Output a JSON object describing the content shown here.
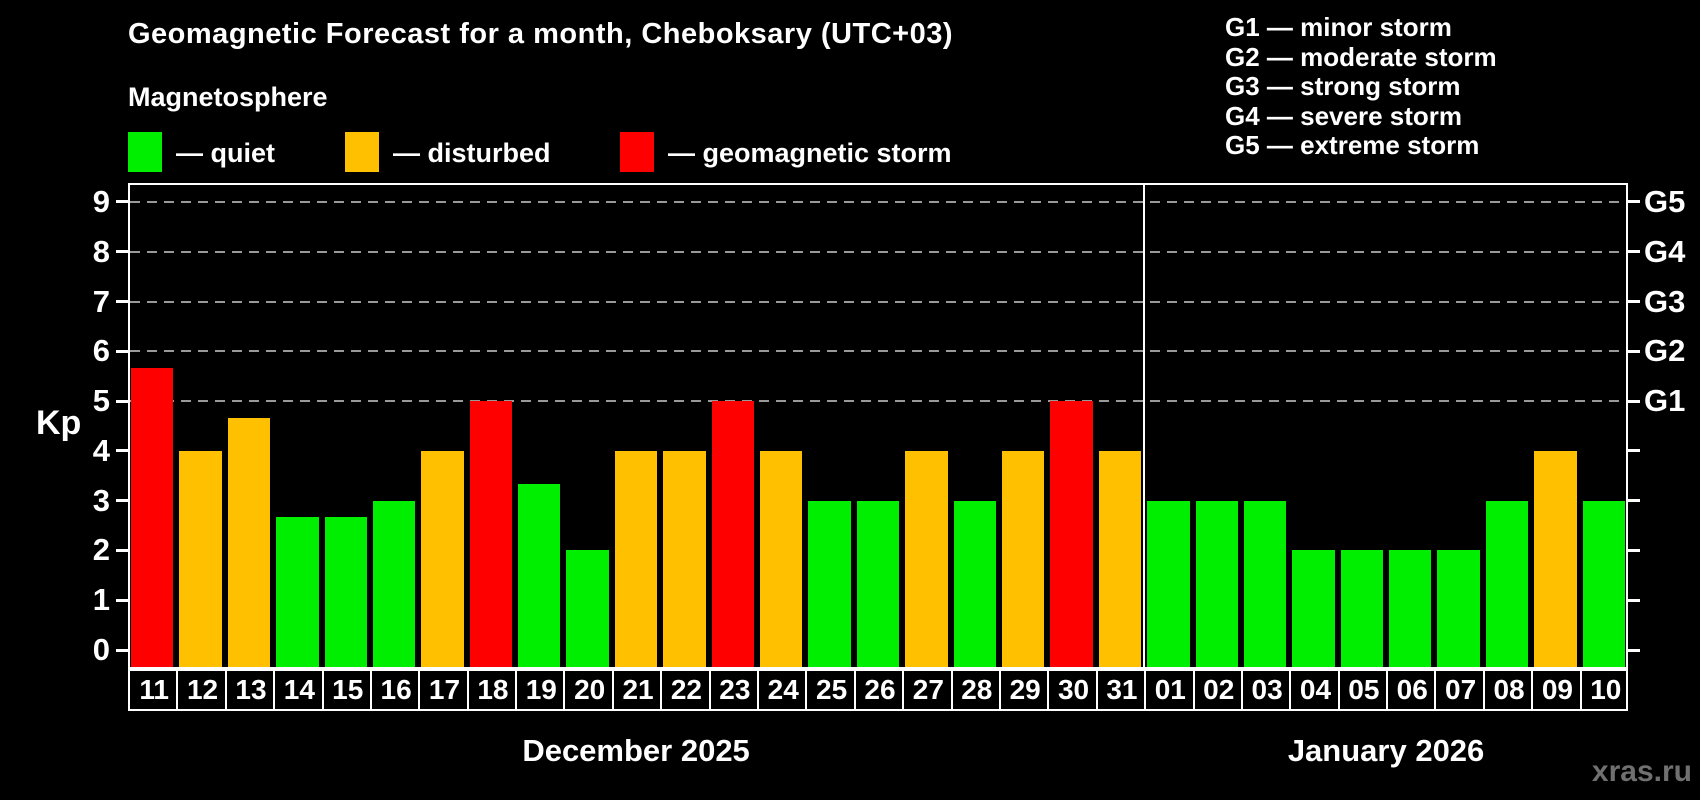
{
  "header": {
    "title": "Geomagnetic Forecast for a month, Cheboksary (UTC+03)",
    "subtitle": "Magnetosphere"
  },
  "legend": {
    "items": [
      {
        "label": "— quiet",
        "level": "quiet",
        "color": "#00ee00"
      },
      {
        "label": "— disturbed",
        "level": "disturbed",
        "color": "#ffc000"
      },
      {
        "label": "— geomagnetic storm",
        "level": "storm",
        "color": "#ff0000"
      }
    ]
  },
  "g_legend": [
    "G1 — minor storm",
    "G2 — moderate storm",
    "G3 — strong storm",
    "G4 — severe storm",
    "G5 — extreme storm"
  ],
  "axes": {
    "kp_label": "Kp",
    "y_ticks": [
      0,
      1,
      2,
      3,
      4,
      5,
      6,
      7,
      8,
      9
    ],
    "g_labels": [
      {
        "label": "G1",
        "value": 5
      },
      {
        "label": "G2",
        "value": 6
      },
      {
        "label": "G3",
        "value": 7
      },
      {
        "label": "G4",
        "value": 8
      },
      {
        "label": "G5",
        "value": 9
      }
    ]
  },
  "colors": {
    "quiet": "#00ee00",
    "disturbed": "#ffc000",
    "storm": "#ff0000",
    "grid": "#999999",
    "axis": "#ffffff",
    "watermark": "#707070"
  },
  "watermark": "xras.ru",
  "chart_data": {
    "type": "bar",
    "title": "Geomagnetic Forecast for a month, Cheboksary (UTC+03)",
    "xlabel": "",
    "ylabel": "Kp",
    "ylim": [
      0,
      9
    ],
    "gridlines_at": [
      5,
      6,
      7,
      8,
      9
    ],
    "legend_position": "top-left",
    "groups": [
      {
        "label": "December 2025",
        "bars": [
          {
            "day": "11",
            "kp": 5.67,
            "level": "storm"
          },
          {
            "day": "12",
            "kp": 4.0,
            "level": "disturbed"
          },
          {
            "day": "13",
            "kp": 4.67,
            "level": "disturbed"
          },
          {
            "day": "14",
            "kp": 2.67,
            "level": "quiet"
          },
          {
            "day": "15",
            "kp": 2.67,
            "level": "quiet"
          },
          {
            "day": "16",
            "kp": 3.0,
            "level": "quiet"
          },
          {
            "day": "17",
            "kp": 4.0,
            "level": "disturbed"
          },
          {
            "day": "18",
            "kp": 5.0,
            "level": "storm"
          },
          {
            "day": "19",
            "kp": 3.33,
            "level": "quiet"
          },
          {
            "day": "20",
            "kp": 2.0,
            "level": "quiet"
          },
          {
            "day": "21",
            "kp": 4.0,
            "level": "disturbed"
          },
          {
            "day": "22",
            "kp": 4.0,
            "level": "disturbed"
          },
          {
            "day": "23",
            "kp": 5.0,
            "level": "storm"
          },
          {
            "day": "24",
            "kp": 4.0,
            "level": "disturbed"
          },
          {
            "day": "25",
            "kp": 3.0,
            "level": "quiet"
          },
          {
            "day": "26",
            "kp": 3.0,
            "level": "quiet"
          },
          {
            "day": "27",
            "kp": 4.0,
            "level": "disturbed"
          },
          {
            "day": "28",
            "kp": 3.0,
            "level": "quiet"
          },
          {
            "day": "29",
            "kp": 4.0,
            "level": "disturbed"
          },
          {
            "day": "30",
            "kp": 5.0,
            "level": "storm"
          },
          {
            "day": "31",
            "kp": 4.0,
            "level": "disturbed"
          }
        ]
      },
      {
        "label": "January 2026",
        "bars": [
          {
            "day": "01",
            "kp": 3.0,
            "level": "quiet"
          },
          {
            "day": "02",
            "kp": 3.0,
            "level": "quiet"
          },
          {
            "day": "03",
            "kp": 3.0,
            "level": "quiet"
          },
          {
            "day": "04",
            "kp": 2.0,
            "level": "quiet"
          },
          {
            "day": "05",
            "kp": 2.0,
            "level": "quiet"
          },
          {
            "day": "06",
            "kp": 2.0,
            "level": "quiet"
          },
          {
            "day": "07",
            "kp": 2.0,
            "level": "quiet"
          },
          {
            "day": "08",
            "kp": 3.0,
            "level": "quiet"
          },
          {
            "day": "09",
            "kp": 4.0,
            "level": "disturbed"
          },
          {
            "day": "10",
            "kp": 3.0,
            "level": "quiet"
          }
        ]
      }
    ]
  }
}
